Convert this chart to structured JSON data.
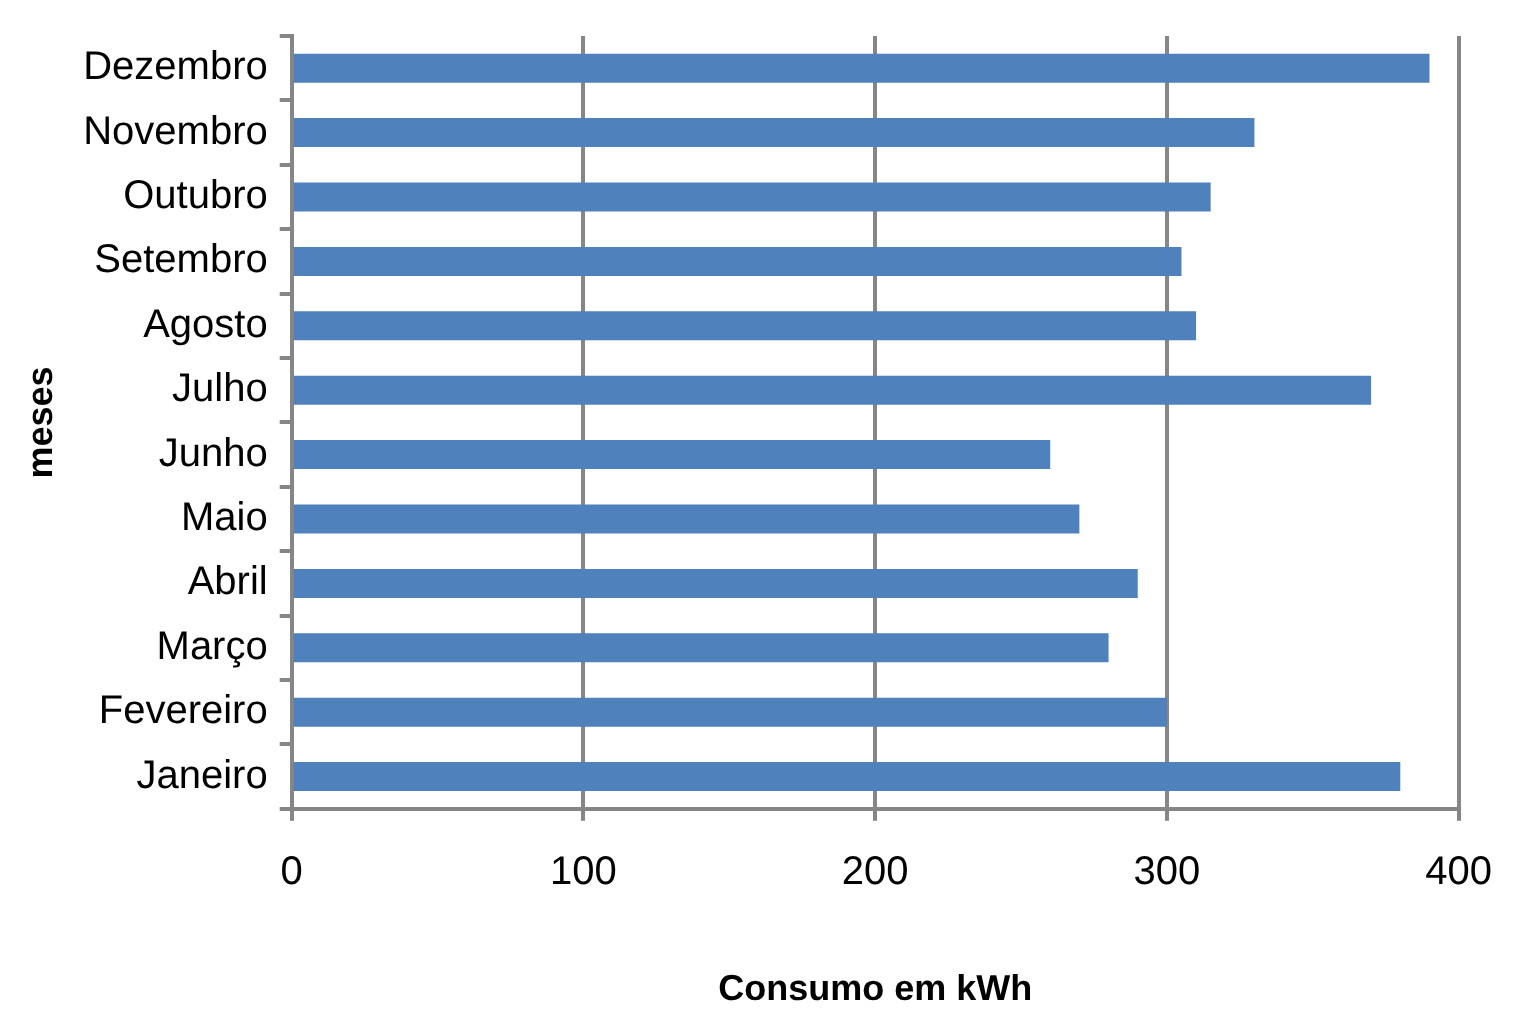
{
  "chart_data": {
    "type": "bar",
    "orientation": "horizontal",
    "xlabel": "Consumo em kWh",
    "ylabel": "meses",
    "categories": [
      "Dezembro",
      "Novembro",
      "Outubro",
      "Setembro",
      "Agosto",
      "Julho",
      "Junho",
      "Maio",
      "Abril",
      "Março",
      "Fevereiro",
      "Janeiro"
    ],
    "values": [
      390,
      330,
      315,
      305,
      310,
      370,
      260,
      270,
      290,
      280,
      300,
      380
    ],
    "color": "#4f81bd",
    "xlim": [
      0,
      400
    ],
    "xticks": [
      0,
      100,
      200,
      300,
      400
    ],
    "grid": "x",
    "legend": false
  }
}
